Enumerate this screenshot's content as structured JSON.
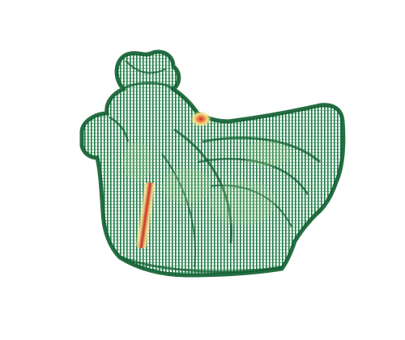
{
  "scene": {
    "object": "point-cloud-hen",
    "colormap": "RdYlGn",
    "background_color": "#ffffff",
    "base_color": "#1e7a45",
    "dense_color": "#0f5e30",
    "light_color": "#9ccf8a",
    "highlight_colors": [
      "#f2e08a",
      "#f08a4b",
      "#c8302a"
    ],
    "hotspots": [
      {
        "id": "neck-spot",
        "intensity": 0.85
      },
      {
        "id": "chest-streak",
        "intensity": 1.0
      }
    ]
  }
}
